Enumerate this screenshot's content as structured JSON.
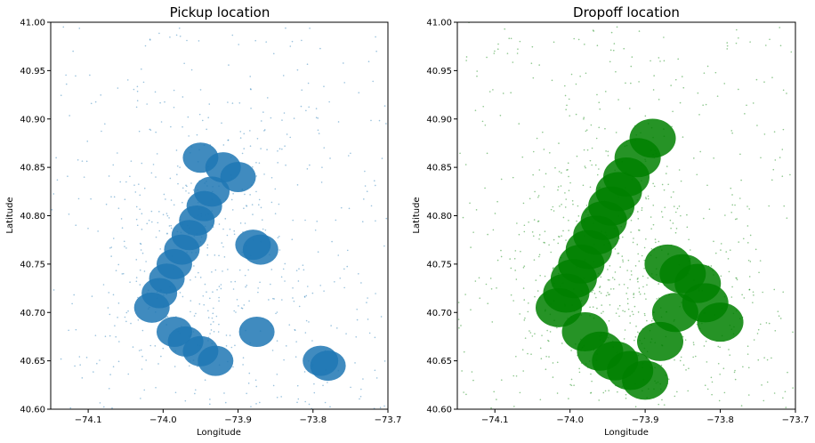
{
  "figure": {
    "background": "#ffffff"
  },
  "chart_data": [
    {
      "type": "scatter",
      "title": "Pickup location",
      "xlabel": "Longitude",
      "ylabel": "Latitude",
      "xlim": [
        -74.15,
        -73.7
      ],
      "ylim": [
        40.6,
        41.0
      ],
      "xticks": [
        -74.1,
        -74.0,
        -73.9,
        -73.8,
        -73.7
      ],
      "xtick_labels": [
        "−74.1",
        "−74.0",
        "−73.9",
        "−73.8",
        "−73.7"
      ],
      "yticks": [
        40.6,
        40.65,
        40.7,
        40.75,
        40.8,
        40.85,
        40.9,
        40.95,
        41.0
      ],
      "ytick_labels": [
        "40.60",
        "40.65",
        "40.70",
        "40.75",
        "40.80",
        "40.85",
        "40.90",
        "40.95",
        "41.00"
      ],
      "grid": false,
      "color": "#1f77b4",
      "series": [
        {
          "description": "dense pickup point clusters (lon, lat)",
          "x": [
            -74.015,
            -74.005,
            -73.995,
            -73.985,
            -73.975,
            -73.965,
            -73.955,
            -73.945,
            -73.935,
            -73.95,
            -73.92,
            -73.9,
            -73.88,
            -73.87,
            -73.985,
            -73.97,
            -73.95,
            -73.93,
            -73.875,
            -73.79,
            -73.78
          ],
          "y": [
            40.705,
            40.72,
            40.735,
            40.75,
            40.765,
            40.78,
            40.795,
            40.81,
            40.825,
            40.86,
            40.85,
            40.84,
            40.77,
            40.765,
            40.68,
            40.67,
            40.66,
            40.65,
            40.68,
            40.65,
            40.645
          ]
        }
      ]
    },
    {
      "type": "scatter",
      "title": "Dropoff location",
      "xlabel": "Longitude",
      "ylabel": "Latitude",
      "xlim": [
        -74.15,
        -73.7
      ],
      "ylim": [
        40.6,
        41.0
      ],
      "xticks": [
        -74.1,
        -74.0,
        -73.9,
        -73.8,
        -73.7
      ],
      "xtick_labels": [
        "−74.1",
        "−74.0",
        "−73.9",
        "−73.8",
        "−73.7"
      ],
      "yticks": [
        40.6,
        40.65,
        40.7,
        40.75,
        40.8,
        40.85,
        40.9,
        40.95,
        41.0
      ],
      "ytick_labels": [
        "40.60",
        "40.65",
        "40.70",
        "40.75",
        "40.80",
        "40.85",
        "40.90",
        "40.95",
        "41.00"
      ],
      "grid": false,
      "color": "#008000",
      "series": [
        {
          "description": "dense dropoff point clusters (lon, lat)",
          "x": [
            -74.015,
            -74.005,
            -73.995,
            -73.985,
            -73.975,
            -73.965,
            -73.955,
            -73.945,
            -73.935,
            -73.925,
            -73.91,
            -73.89,
            -73.87,
            -73.85,
            -73.83,
            -73.98,
            -73.96,
            -73.94,
            -73.92,
            -73.9,
            -73.88,
            -73.86,
            -73.82,
            -73.8
          ],
          "y": [
            40.705,
            40.72,
            40.735,
            40.75,
            40.765,
            40.78,
            40.795,
            40.81,
            40.825,
            40.84,
            40.86,
            40.88,
            40.75,
            40.74,
            40.73,
            40.68,
            40.66,
            40.65,
            40.64,
            40.63,
            40.67,
            40.7,
            40.71,
            40.69
          ]
        }
      ]
    }
  ]
}
